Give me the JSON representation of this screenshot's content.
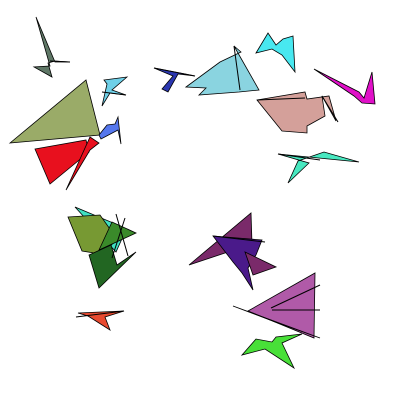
{
  "scene": {
    "background": "#ffffff",
    "stroke": "#000000",
    "fill_colors": {
      "slate": "#5f7766",
      "olive": "#9aab68",
      "sky": "#6fd0e8",
      "blue": "#5577ee",
      "red": "#e8101e",
      "navy": "#2b37b0",
      "light_blue": "#8ad4e0",
      "cyan": "#48e8f0",
      "magenta": "#e010c8",
      "pink": "#d4a09a",
      "seafoam": "#48e8c0",
      "mint": "#40e0c0",
      "moss": "#779933",
      "dark_green": "#226622",
      "forest": "#3a8a2a",
      "tomato": "#e84a30",
      "plum": "#7a2a6a",
      "indigo": "#4a1a8a",
      "orchid": "#b05aa8",
      "lime": "#48e038"
    }
  }
}
